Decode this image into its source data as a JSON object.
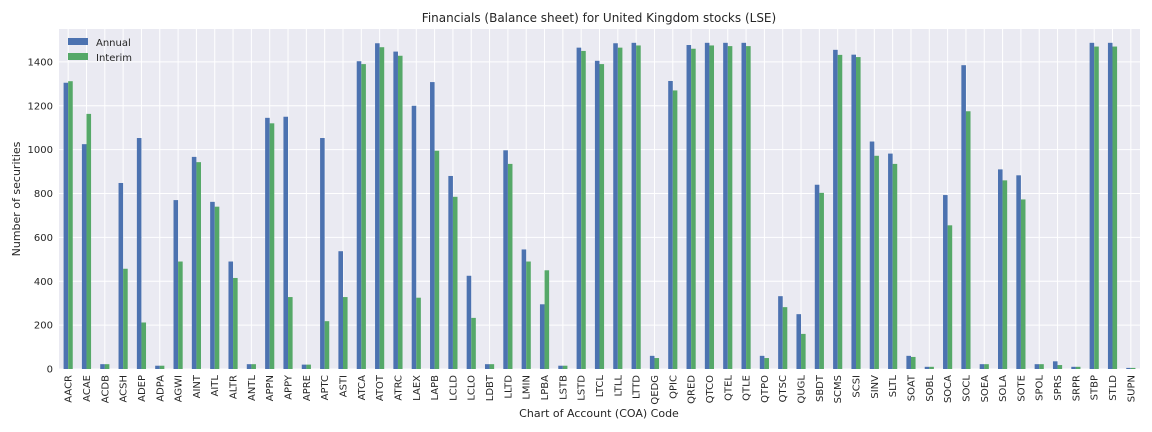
{
  "chart_data": {
    "type": "bar",
    "title": "Financials (Balance sheet) for United Kingdom stocks (LSE)",
    "xlabel": "Chart of Account (COA) Code",
    "ylabel": "Number of securities",
    "ylim": [
      0,
      1550
    ],
    "yticks": [
      0,
      200,
      400,
      600,
      800,
      1000,
      1200,
      1400
    ],
    "grid": true,
    "legend_position": "top-left",
    "colors": {
      "Annual": "#4c72b0",
      "Interim": "#55a868",
      "background": "#eaeaf2",
      "grid": "#ffffff"
    },
    "categories": [
      "AACR",
      "ACAE",
      "ACDB",
      "ACSH",
      "ADEP",
      "ADPA",
      "AGWI",
      "AINT",
      "AITL",
      "ALTR",
      "ANTL",
      "APPN",
      "APPY",
      "APRE",
      "APTC",
      "ASTI",
      "ATCA",
      "ATOT",
      "ATRC",
      "LAEX",
      "LAPB",
      "LCLD",
      "LCLO",
      "LDBT",
      "LLTD",
      "LMIN",
      "LPBA",
      "LSTB",
      "LSTD",
      "LTCL",
      "LTLL",
      "LTTD",
      "QEDG",
      "QPIC",
      "QRED",
      "QTCO",
      "QTEL",
      "QTLE",
      "QTPO",
      "QTSC",
      "QUGL",
      "SBDT",
      "SCMS",
      "SCSI",
      "SINV",
      "SLTL",
      "SOAT",
      "SOBL",
      "SOCA",
      "SOCL",
      "SOEA",
      "SOLA",
      "SOTE",
      "SPOL",
      "SPRS",
      "SRPR",
      "STBP",
      "STLD",
      "SUPN"
    ],
    "series": [
      {
        "name": "Annual",
        "values": [
          1305,
          1025,
          22,
          848,
          1053,
          15,
          770,
          967,
          762,
          490,
          22,
          1145,
          1150,
          20,
          1053,
          537,
          1403,
          1485,
          1447,
          1200,
          1308,
          880,
          425,
          22,
          997,
          545,
          295,
          15,
          1465,
          1405,
          1485,
          1487,
          60,
          1313,
          1477,
          1487,
          1487,
          1487,
          60,
          332,
          250,
          840,
          1455,
          1433,
          1037,
          982,
          60,
          10,
          793,
          1385,
          22,
          910,
          883,
          22,
          35,
          10,
          1487,
          1487,
          5
        ]
      },
      {
        "name": "Interim",
        "values": [
          1312,
          1163,
          22,
          457,
          212,
          15,
          490,
          943,
          740,
          415,
          22,
          1120,
          328,
          20,
          218,
          328,
          1390,
          1467,
          1428,
          325,
          995,
          785,
          233,
          22,
          935,
          490,
          450,
          15,
          1450,
          1390,
          1465,
          1475,
          50,
          1270,
          1460,
          1475,
          1472,
          1472,
          50,
          282,
          160,
          803,
          1432,
          1422,
          972,
          935,
          55,
          10,
          655,
          1175,
          22,
          860,
          773,
          22,
          18,
          10,
          1470,
          1470,
          5
        ]
      }
    ]
  }
}
